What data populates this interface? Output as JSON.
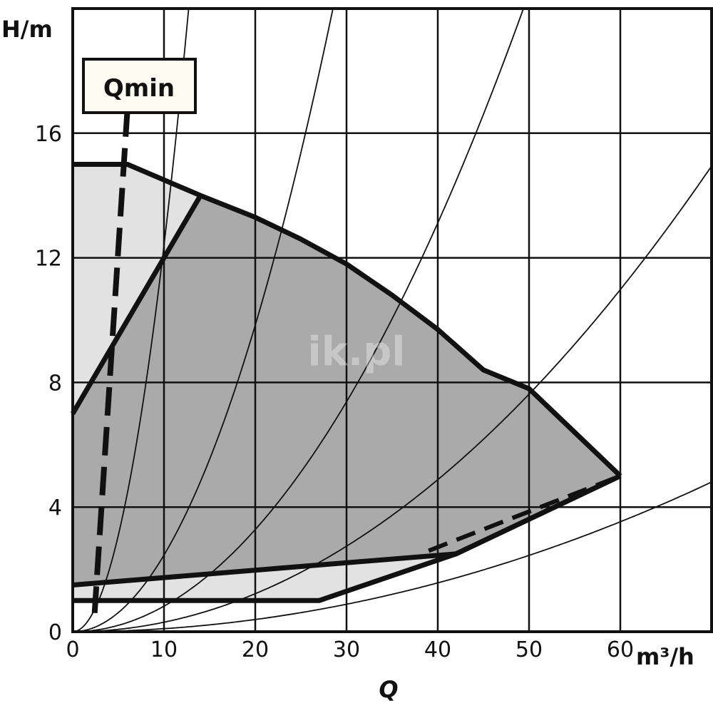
{
  "chart_data": {
    "type": "line",
    "title": "",
    "xlabel": "Q",
    "xunit": "m³/h",
    "ylabel": "H/m",
    "xlim": [
      0,
      70
    ],
    "ylim": [
      0,
      20
    ],
    "grid": true,
    "x_ticks": [
      0,
      10,
      20,
      30,
      40,
      50,
      60
    ],
    "x_tick_labels": [
      "0",
      "10",
      "20",
      "30",
      "40",
      "50",
      "60"
    ],
    "y_ticks": [
      0,
      4,
      8,
      12,
      16
    ],
    "y_tick_labels": [
      "0",
      "4",
      "8",
      "12",
      "16"
    ],
    "colors": {
      "dark_region": "#aaaaaa",
      "light_region": "#e2e2e2",
      "line": "#111111",
      "label_box": "#fdfcf3"
    },
    "max_curve": [
      [
        0,
        15
      ],
      [
        6,
        15
      ],
      [
        14,
        14
      ],
      [
        20,
        13.3
      ],
      [
        25,
        12.6
      ],
      [
        30,
        11.8
      ],
      [
        35,
        10.8
      ],
      [
        40,
        9.7
      ],
      [
        45,
        8.4
      ],
      [
        50,
        7.8
      ],
      [
        55,
        6.4
      ],
      [
        60,
        5
      ]
    ],
    "min_curve": [
      [
        0,
        1.5
      ],
      [
        42,
        2.5
      ],
      [
        60,
        5
      ]
    ],
    "lowest_curve": [
      [
        0,
        1
      ],
      [
        27,
        1
      ],
      [
        42,
        2.5
      ],
      [
        60,
        5
      ]
    ],
    "left_limit_line": [
      [
        0,
        7
      ],
      [
        14,
        14
      ]
    ],
    "dashed_limit_line": [
      [
        39,
        2.6
      ],
      [
        60,
        5
      ]
    ],
    "qmin_line": [
      [
        6,
        16.8
      ],
      [
        2.4,
        0.6
      ]
    ],
    "qmin_label": "Qmin",
    "system_curves_k": [
      0.124,
      0.0246,
      0.0082,
      0.00305,
      0.00098
    ],
    "watermark": "ik.pl"
  }
}
